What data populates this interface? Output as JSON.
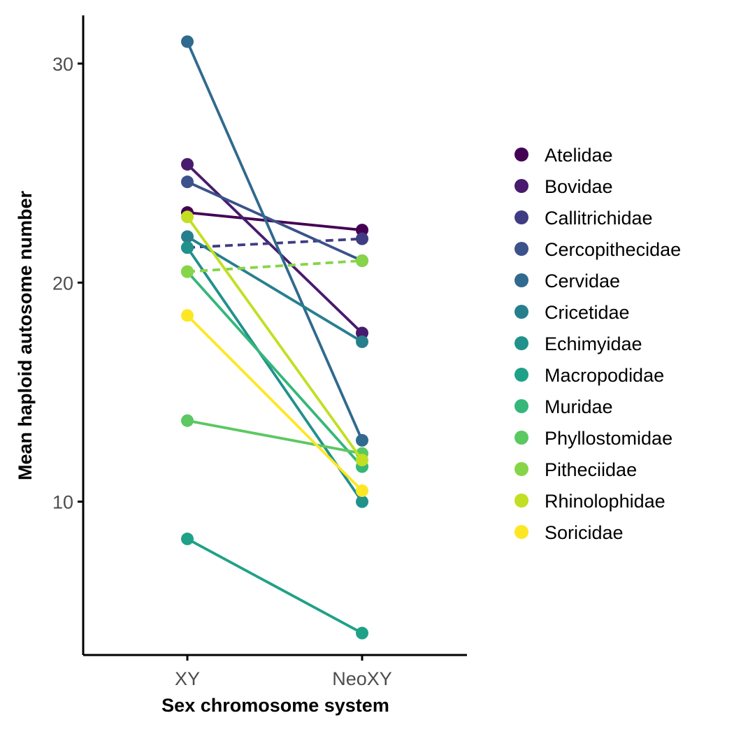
{
  "chart_data": {
    "type": "line",
    "xlabel": "Sex chromosome system",
    "ylabel": "Mean haploid autosome number",
    "categories": [
      "XY",
      "NeoXY"
    ],
    "ylim": [
      3.0,
      32.2
    ],
    "yticks": [
      10,
      20,
      30
    ],
    "grid": false,
    "legend_position": "right",
    "series": [
      {
        "name": "Atelidae",
        "color": "#440154",
        "values": [
          23.2,
          22.4
        ],
        "dashed": false
      },
      {
        "name": "Bovidae",
        "color": "#481B6D",
        "values": [
          25.4,
          17.7
        ],
        "dashed": false
      },
      {
        "name": "Callitrichidae",
        "color": "#3F3C84",
        "values": [
          21.6,
          22.0
        ],
        "dashed": true
      },
      {
        "name": "Cercopithecidae",
        "color": "#3B528B",
        "values": [
          24.6,
          21.0
        ],
        "dashed": false
      },
      {
        "name": "Cervidae",
        "color": "#306A8E",
        "values": [
          31.0,
          12.8
        ],
        "dashed": false
      },
      {
        "name": "Cricetidae",
        "color": "#277F8E",
        "values": [
          22.1,
          17.3
        ],
        "dashed": false
      },
      {
        "name": "Echimyidae",
        "color": "#21918C",
        "values": [
          21.6,
          10.0
        ],
        "dashed": false
      },
      {
        "name": "Macropodidae",
        "color": "#1FA187",
        "values": [
          8.3,
          4.0
        ],
        "dashed": false
      },
      {
        "name": "Muridae",
        "color": "#35B779",
        "values": [
          20.5,
          11.6
        ],
        "dashed": false
      },
      {
        "name": "Phyllostomidae",
        "color": "#5BC862",
        "values": [
          13.7,
          12.2
        ],
        "dashed": false
      },
      {
        "name": "Pitheciidae",
        "color": "#86D549",
        "values": [
          20.5,
          21.0
        ],
        "dashed": true
      },
      {
        "name": "Rhinolophidae",
        "color": "#C2DF23",
        "values": [
          23.0,
          11.9
        ],
        "dashed": false
      },
      {
        "name": "Soricidae",
        "color": "#FDE725",
        "values": [
          18.5,
          10.5
        ],
        "dashed": false
      }
    ]
  }
}
